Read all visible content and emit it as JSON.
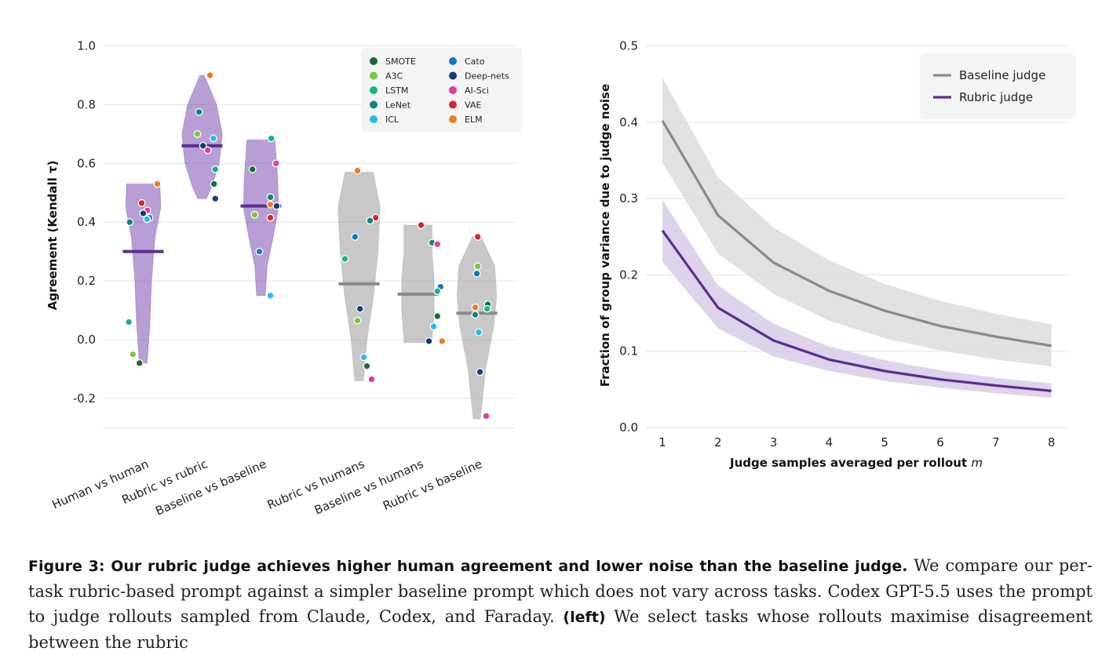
{
  "chart_data": [
    {
      "type": "violin",
      "ylabel": "Agreement (Kendall τ)",
      "ylim": [
        -0.3,
        1.0
      ],
      "yticks": [
        "1.0",
        "0.8",
        "0.6",
        "0.4",
        "0.2",
        "0.0",
        "-0.2"
      ],
      "ytick_values": [
        1.0,
        0.8,
        0.6,
        0.4,
        0.2,
        0.0,
        -0.2
      ],
      "categories": [
        "Human vs human",
        "Rubric vs rubric",
        "Baseline vs baseline",
        "Rubric vs humans",
        "Baseline vs humans",
        "Rubric vs baseline"
      ],
      "category_colors": [
        "#7b4fb0",
        "#7b4fb0",
        "#7b4fb0",
        "#9a9a9a",
        "#9a9a9a",
        "#9a9a9a"
      ],
      "median_colors": [
        "#5b2d91",
        "#5b2d91",
        "#5b2d91",
        "#8a8a8a",
        "#8a8a8a",
        "#8a8a8a"
      ],
      "medians": [
        0.3,
        0.66,
        0.455,
        0.19,
        0.155,
        0.09
      ],
      "violins": [
        {
          "y": [
            0.53,
            0.45,
            0.35,
            0.2,
            0.05,
            -0.08
          ],
          "w": [
            0.38,
            0.4,
            0.27,
            0.19,
            0.15,
            0.09
          ]
        },
        {
          "y": [
            0.9,
            0.8,
            0.7,
            0.6,
            0.52,
            0.48
          ],
          "w": [
            0.05,
            0.33,
            0.46,
            0.39,
            0.22,
            0.1
          ]
        },
        {
          "y": [
            0.68,
            0.55,
            0.45,
            0.35,
            0.25,
            0.15
          ],
          "w": [
            0.32,
            0.38,
            0.4,
            0.28,
            0.14,
            0.1
          ]
        },
        {
          "y": [
            0.57,
            0.45,
            0.3,
            0.15,
            0.0,
            -0.14
          ],
          "w": [
            0.32,
            0.48,
            0.43,
            0.33,
            0.18,
            0.1
          ]
        },
        {
          "y": [
            0.39,
            0.3,
            0.2,
            0.1,
            0.0,
            -0.01
          ],
          "w": [
            0.32,
            0.32,
            0.37,
            0.37,
            0.32,
            0.32
          ]
        },
        {
          "y": [
            0.35,
            0.25,
            0.15,
            0.05,
            -0.1,
            -0.27
          ],
          "w": [
            0.1,
            0.41,
            0.45,
            0.39,
            0.2,
            0.08
          ]
        }
      ],
      "legend": {
        "placement": "top-right",
        "entries": [
          {
            "name": "SMOTE",
            "color": "#1a6b35"
          },
          {
            "name": "A3C",
            "color": "#7bc93b"
          },
          {
            "name": "LSTM",
            "color": "#19b386"
          },
          {
            "name": "LeNet",
            "color": "#12857a"
          },
          {
            "name": "ICL",
            "color": "#22bde8"
          },
          {
            "name": "Cato",
            "color": "#1577c4"
          },
          {
            "name": "Deep-nets",
            "color": "#143d73"
          },
          {
            "name": "AI-Sci",
            "color": "#e2399a"
          },
          {
            "name": "VAE",
            "color": "#d7262f"
          },
          {
            "name": "ELM",
            "color": "#ef7c21"
          }
        ]
      },
      "points": [
        {
          "c": 0,
          "dx": -0.43,
          "y": 0.4,
          "k": "LeNet"
        },
        {
          "c": 0,
          "dx": 0.45,
          "y": 0.53,
          "k": "ELM"
        },
        {
          "c": 0,
          "dx": -0.05,
          "y": 0.465,
          "k": "VAE"
        },
        {
          "c": 0,
          "dx": 0.13,
          "y": 0.44,
          "k": "AI-Sci"
        },
        {
          "c": 0,
          "dx": 0.0,
          "y": 0.43,
          "k": "Deep-nets"
        },
        {
          "c": 0,
          "dx": 0.2,
          "y": 0.415,
          "k": "Cato"
        },
        {
          "c": 0,
          "dx": 0.12,
          "y": 0.41,
          "k": "ICL"
        },
        {
          "c": 0,
          "dx": -0.46,
          "y": 0.06,
          "k": "LSTM"
        },
        {
          "c": 0,
          "dx": -0.33,
          "y": -0.05,
          "k": "A3C"
        },
        {
          "c": 0,
          "dx": -0.12,
          "y": -0.08,
          "k": "SMOTE"
        },
        {
          "c": 1,
          "dx": 0.25,
          "y": 0.9,
          "k": "ELM"
        },
        {
          "c": 1,
          "dx": -0.1,
          "y": 0.775,
          "k": "LeNet"
        },
        {
          "c": 1,
          "dx": -0.15,
          "y": 0.7,
          "k": "A3C"
        },
        {
          "c": 1,
          "dx": 0.36,
          "y": 0.685,
          "k": "ICL"
        },
        {
          "c": 1,
          "dx": 0.03,
          "y": 0.66,
          "k": "Deep-nets"
        },
        {
          "c": 1,
          "dx": 0.18,
          "y": 0.645,
          "k": "AI-Sci"
        },
        {
          "c": 1,
          "dx": 0.42,
          "y": 0.58,
          "k": "LSTM"
        },
        {
          "c": 1,
          "dx": 0.38,
          "y": 0.53,
          "k": "SMOTE"
        },
        {
          "c": 1,
          "dx": 0.42,
          "y": 0.48,
          "k": "Deep-nets"
        },
        {
          "c": 2,
          "dx": 0.33,
          "y": 0.685,
          "k": "LSTM"
        },
        {
          "c": 2,
          "dx": 0.48,
          "y": 0.6,
          "k": "AI-Sci"
        },
        {
          "c": 2,
          "dx": -0.27,
          "y": 0.58,
          "k": "SMOTE"
        },
        {
          "c": 2,
          "dx": 0.3,
          "y": 0.485,
          "k": "LeNet"
        },
        {
          "c": 2,
          "dx": 0.3,
          "y": 0.46,
          "k": "ELM"
        },
        {
          "c": 2,
          "dx": 0.5,
          "y": 0.455,
          "k": "Deep-nets"
        },
        {
          "c": 2,
          "dx": -0.2,
          "y": 0.425,
          "k": "A3C"
        },
        {
          "c": 2,
          "dx": 0.3,
          "y": 0.415,
          "k": "VAE"
        },
        {
          "c": 2,
          "dx": -0.05,
          "y": 0.3,
          "k": "Cato"
        },
        {
          "c": 2,
          "dx": 0.3,
          "y": 0.15,
          "k": "ICL"
        },
        {
          "c": 3,
          "dx": -0.05,
          "y": 0.575,
          "k": "ELM"
        },
        {
          "c": 3,
          "dx": 0.53,
          "y": 0.415,
          "k": "VAE"
        },
        {
          "c": 3,
          "dx": 0.35,
          "y": 0.405,
          "k": "LeNet"
        },
        {
          "c": 3,
          "dx": -0.13,
          "y": 0.35,
          "k": "Cato"
        },
        {
          "c": 3,
          "dx": -0.45,
          "y": 0.275,
          "k": "LSTM"
        },
        {
          "c": 3,
          "dx": 0.03,
          "y": 0.105,
          "k": "Deep-nets"
        },
        {
          "c": 3,
          "dx": -0.05,
          "y": 0.065,
          "k": "A3C"
        },
        {
          "c": 3,
          "dx": 0.15,
          "y": -0.06,
          "k": "ICL"
        },
        {
          "c": 3,
          "dx": 0.25,
          "y": -0.09,
          "k": "SMOTE"
        },
        {
          "c": 3,
          "dx": 0.4,
          "y": -0.135,
          "k": "AI-Sci"
        },
        {
          "c": 4,
          "dx": 0.1,
          "y": 0.39,
          "k": "VAE"
        },
        {
          "c": 4,
          "dx": 0.45,
          "y": 0.33,
          "k": "LeNet"
        },
        {
          "c": 4,
          "dx": 0.62,
          "y": 0.325,
          "k": "AI-Sci"
        },
        {
          "c": 4,
          "dx": 0.72,
          "y": 0.18,
          "k": "Cato"
        },
        {
          "c": 4,
          "dx": 0.62,
          "y": 0.165,
          "k": "LSTM"
        },
        {
          "c": 4,
          "dx": 0.62,
          "y": 0.08,
          "k": "SMOTE"
        },
        {
          "c": 4,
          "dx": 0.5,
          "y": 0.045,
          "k": "ICL"
        },
        {
          "c": 4,
          "dx": 0.35,
          "y": -0.005,
          "k": "Deep-nets"
        },
        {
          "c": 4,
          "dx": 0.77,
          "y": -0.005,
          "k": "ELM"
        },
        {
          "c": 5,
          "dx": 0.03,
          "y": 0.35,
          "k": "VAE"
        },
        {
          "c": 5,
          "dx": 0.03,
          "y": 0.25,
          "k": "A3C"
        },
        {
          "c": 5,
          "dx": 0.0,
          "y": 0.225,
          "k": "Cato"
        },
        {
          "c": 5,
          "dx": 0.35,
          "y": 0.12,
          "k": "SMOTE"
        },
        {
          "c": 5,
          "dx": -0.05,
          "y": 0.11,
          "k": "ELM"
        },
        {
          "c": 5,
          "dx": 0.33,
          "y": 0.105,
          "k": "LSTM"
        },
        {
          "c": 5,
          "dx": -0.05,
          "y": 0.085,
          "k": "LeNet"
        },
        {
          "c": 5,
          "dx": 0.06,
          "y": 0.025,
          "k": "ICL"
        },
        {
          "c": 5,
          "dx": 0.1,
          "y": -0.11,
          "k": "Deep-nets"
        },
        {
          "c": 5,
          "dx": 0.3,
          "y": -0.26,
          "k": "AI-Sci"
        }
      ]
    },
    {
      "type": "line",
      "xlabel": "Judge samples averaged per rollout",
      "xlabel_var": "m",
      "ylabel": "Fraction of group variance due to judge noise",
      "x": [
        1,
        2,
        3,
        4,
        5,
        6,
        7,
        8
      ],
      "xlim": [
        0.85,
        8.3
      ],
      "ylim": [
        0.0,
        0.5
      ],
      "yticks": [
        "0.5",
        "0.4",
        "0.3",
        "0.2",
        "0.1",
        "0.0"
      ],
      "ytick_values": [
        0.5,
        0.4,
        0.3,
        0.2,
        0.1,
        0.0
      ],
      "xticks": [
        "1",
        "2",
        "3",
        "4",
        "5",
        "6",
        "7",
        "8"
      ],
      "legend": {
        "placement": "top-right"
      },
      "series": [
        {
          "name": "Baseline judge",
          "color": "#8a8a8a",
          "band_color": "#dcdcdc",
          "values": [
            0.402,
            0.278,
            0.216,
            0.179,
            0.153,
            0.133,
            0.119,
            0.107
          ],
          "lower": [
            0.347,
            0.228,
            0.175,
            0.14,
            0.117,
            0.101,
            0.089,
            0.08
          ],
          "upper": [
            0.458,
            0.328,
            0.262,
            0.219,
            0.188,
            0.166,
            0.149,
            0.135
          ]
        },
        {
          "name": "Rubric judge",
          "color": "#5b2d91",
          "band_color": "#d7cbe6",
          "values": [
            0.258,
            0.157,
            0.114,
            0.089,
            0.074,
            0.063,
            0.055,
            0.048
          ],
          "lower": [
            0.217,
            0.13,
            0.093,
            0.074,
            0.061,
            0.052,
            0.045,
            0.039
          ],
          "upper": [
            0.298,
            0.186,
            0.136,
            0.106,
            0.088,
            0.075,
            0.065,
            0.058
          ]
        }
      ]
    }
  ],
  "caption": {
    "lead": "Figure 3: Our rubric judge achieves higher human agreement and lower noise than the baseline judge.",
    "text1": " We compare our per-task rubric-based prompt against a simpler baseline prompt which does not vary across tasks. Codex GPT-5.5 uses the prompt to judge rollouts sampled from Claude, Codex, and Faraday. ",
    "bold2": "(left)",
    "text2": " We select tasks whose rollouts maximise disagreement between the rubric"
  }
}
